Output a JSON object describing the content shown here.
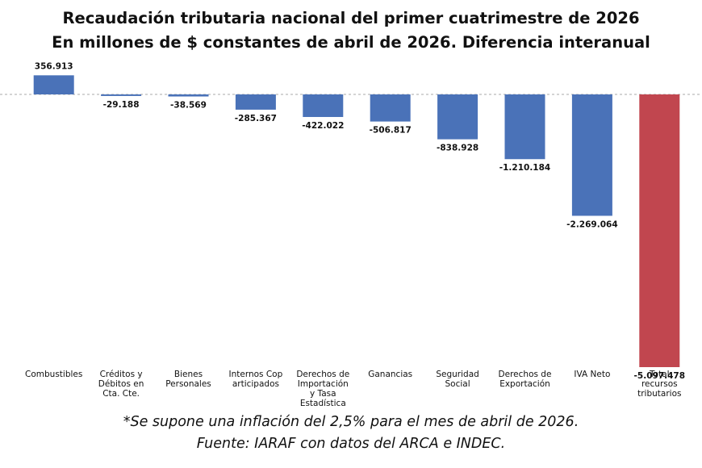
{
  "chart_data": {
    "type": "bar",
    "title": "Recaudación tributaria nacional del primer cuatrimestre de 2026",
    "subtitle": "En millones de $ constantes de abril de 2026. Diferencia interanual",
    "categories": [
      "Combustibles",
      "Créditos y Débitos en Cta. Cte.",
      "Bienes Personales",
      "Internos Cop articipados",
      "Derechos de Importación y Tasa Estadística",
      "Ganancias",
      "Seguridad Social",
      "Derechos de Exportación",
      "IVA Neto",
      "Total recursos tributarios"
    ],
    "category_lines": [
      [
        "Combustibles"
      ],
      [
        "Créditos y",
        "Débitos en",
        "Cta. Cte."
      ],
      [
        "Bienes",
        "Personales"
      ],
      [
        "Internos Cop",
        "articipados"
      ],
      [
        "Derechos de",
        "Importación",
        "y Tasa",
        "Estadística"
      ],
      [
        "Ganancias"
      ],
      [
        "Seguridad",
        "Social"
      ],
      [
        "Derechos de",
        "Exportación"
      ],
      [
        "IVA Neto"
      ],
      [
        "Total",
        "recursos",
        "tributarios"
      ]
    ],
    "values": [
      356913,
      -29188,
      -38569,
      -285367,
      -422022,
      -506817,
      -838928,
      -1210184,
      -2269064,
      -5097478
    ],
    "value_labels": [
      "356.913",
      "-29.188",
      "-38.569",
      "-285.367",
      "-422.022",
      "-506.817",
      "-838.928",
      "-1.210.184",
      "-2.269.064",
      "-5.097.478"
    ],
    "colors": {
      "bar": "#4a72b8",
      "total_bar": "#c1464f",
      "zero_line": "#aaaaaa"
    },
    "ylim": [
      -5097478,
      356913
    ],
    "xlabel": "",
    "ylabel": "",
    "grid": false,
    "zero_line": "dashed"
  },
  "footnotes": {
    "inflation_note": "*Se supone una inflación del 2,5% para el mes de abril de 2026.",
    "source": "Fuente: IARAF con datos del ARCA e INDEC."
  }
}
